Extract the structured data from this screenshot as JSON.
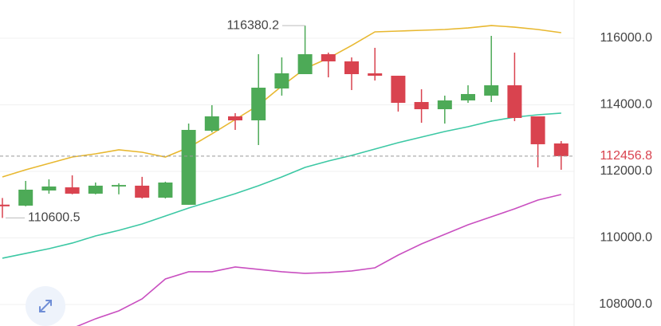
{
  "chart_data": {
    "type": "candlestick",
    "open": [
      111000,
      110970,
      111425,
      111520,
      111330,
      111545,
      111570,
      111210,
      110995,
      113222,
      113653,
      113533,
      114491,
      114922,
      115521,
      115305,
      114946,
      114874,
      114084,
      113868,
      114132,
      114276,
      114587,
      113653,
      112839
    ],
    "high": [
      111200,
      111713,
      111760,
      111880,
      111665,
      111640,
      111835,
      111690,
      113437,
      113988,
      113749,
      115521,
      115425,
      116380.2,
      115569,
      115425,
      115713,
      114874,
      114467,
      114276,
      114587,
      116072,
      115569,
      113653,
      112911
    ],
    "low": [
      110600.5,
      110950,
      111330,
      111310,
      111310,
      111310,
      111185,
      111185,
      110995,
      113174,
      113246,
      112791,
      114276,
      114922,
      114826,
      114443,
      114731,
      113797,
      113461,
      113437,
      114060,
      114084,
      113509,
      112120,
      112048
    ],
    "close": [
      110950,
      111450,
      111545,
      111330,
      111570,
      111590,
      111210,
      111665,
      113246,
      113653,
      113533,
      114515,
      114946,
      115521,
      115305,
      114922,
      114874,
      114060,
      113868,
      114132,
      114324,
      114587,
      113605,
      112815,
      112456.8
    ],
    "up_color": "#4daa57",
    "down_color": "#d9434f",
    "lines": [
      {
        "color": "#e8b830",
        "values": [
          111833,
          112048,
          112240,
          112431,
          112527,
          112647,
          112575,
          112431,
          112719,
          113126,
          113557,
          113988,
          114563,
          115090,
          115401,
          115784,
          116192,
          116216,
          116240,
          116264,
          116311,
          116383,
          116335,
          116264,
          116168
        ]
      },
      {
        "color": "#3cc8a4",
        "values": [
          109390,
          109534,
          109677,
          109845,
          110060,
          110228,
          110420,
          110659,
          110899,
          111114,
          111330,
          111569,
          111833,
          112120,
          112312,
          112479,
          112671,
          112863,
          113030,
          113198,
          113342,
          113510,
          113629,
          113701,
          113749
        ]
      },
      {
        "color": "#c94fc0",
        "values": [
          null,
          null,
          null,
          107282,
          107570,
          107809,
          108168,
          108767,
          108983,
          108983,
          109126,
          109055,
          108983,
          108935,
          108959,
          109007,
          109102,
          109485,
          109821,
          110108,
          110396,
          110635,
          110874,
          111138,
          111306
        ]
      }
    ],
    "ylim": [
      107353,
      117150
    ],
    "yticks": [
      {
        "value": 108000,
        "label": "108000.0"
      },
      {
        "value": 110000,
        "label": "110000.0"
      },
      {
        "value": 112000,
        "label": "112000.0"
      },
      {
        "value": 114000,
        "label": "114000.0"
      },
      {
        "value": 116000,
        "label": "116000.0"
      }
    ],
    "grid": true,
    "max_label": 116380.2,
    "min_label": 110600.5,
    "last_price": 112456.8
  }
}
